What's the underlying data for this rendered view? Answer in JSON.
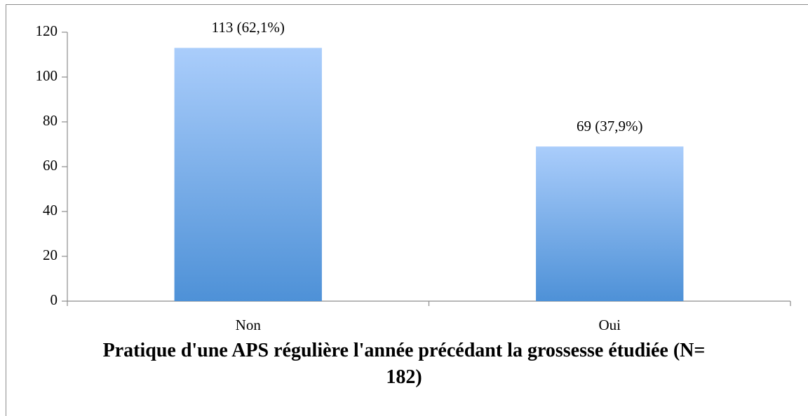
{
  "chart_data": {
    "type": "bar",
    "title": "Pratique d'une APS régulière l'année précédant la grossesse étudiée (N= 182)",
    "categories": [
      "Non",
      "Oui"
    ],
    "values": [
      113,
      69
    ],
    "value_labels": [
      "113 (62,1%)",
      "69 (37,9%)"
    ],
    "gradient": [
      "#aacdfb",
      "#4e91d7"
    ],
    "ylim": [
      0,
      120
    ],
    "yticks": [
      0,
      20,
      40,
      60,
      80,
      100,
      120
    ],
    "grid": false
  }
}
